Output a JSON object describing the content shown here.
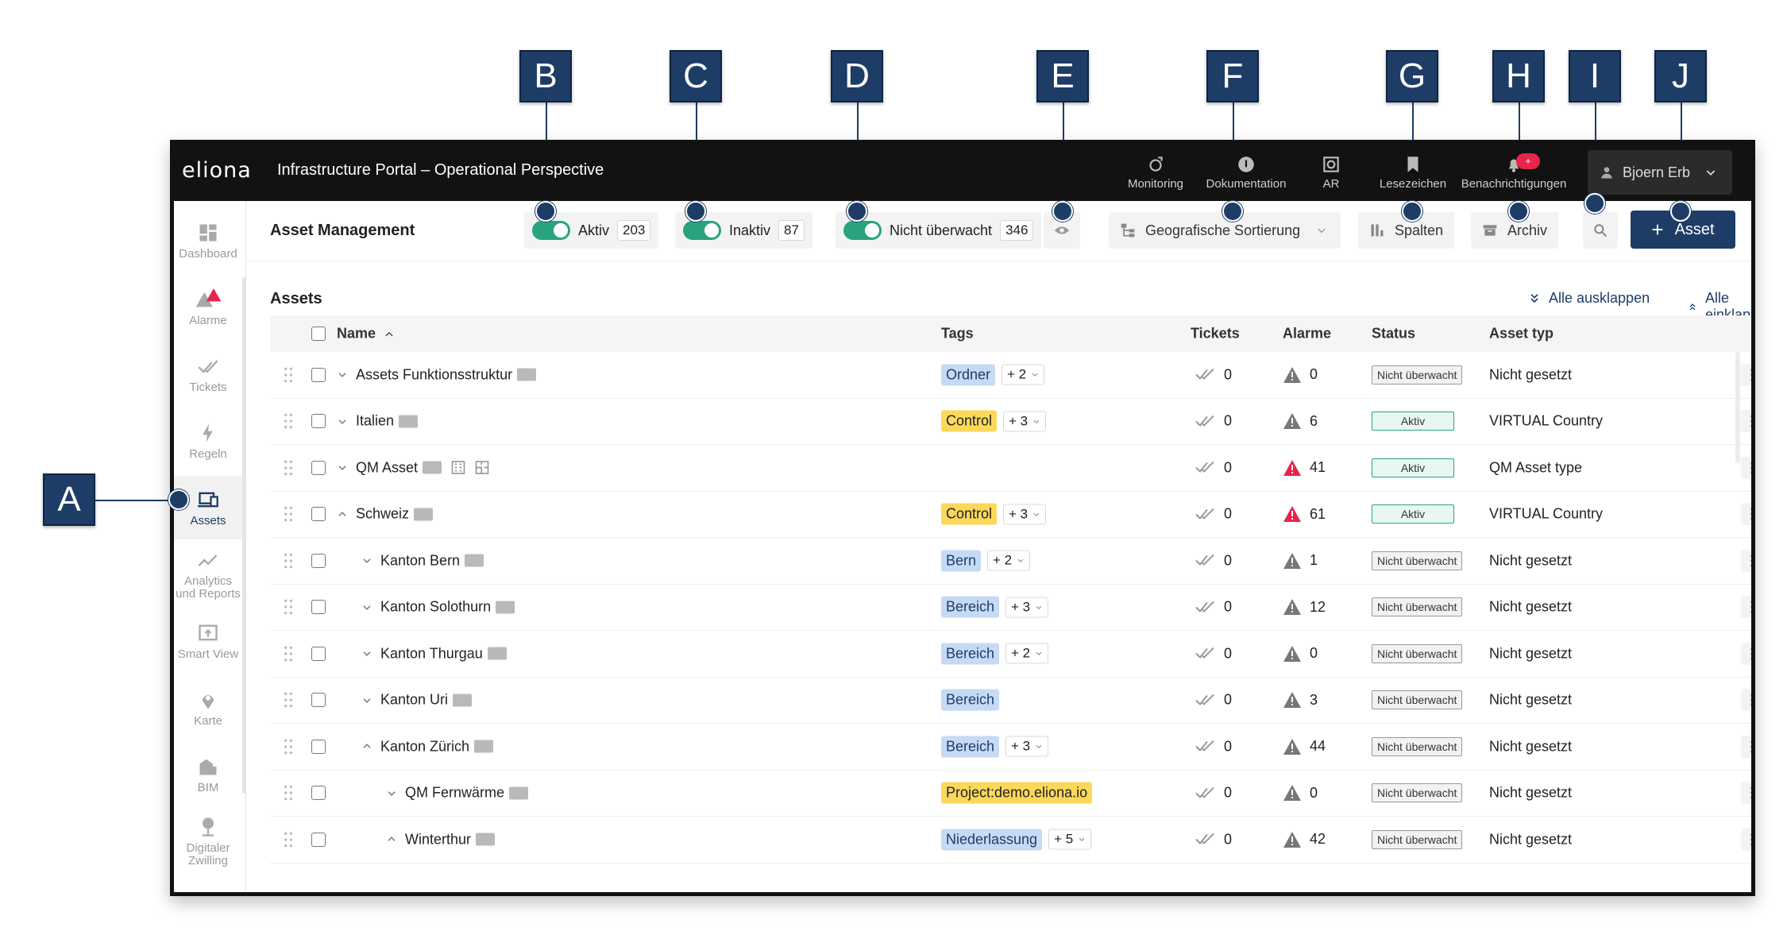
{
  "callouts": [
    "A",
    "B",
    "C",
    "D",
    "E",
    "F",
    "G",
    "H",
    "I",
    "J"
  ],
  "app": {
    "logo": "eliona",
    "portal_title": "Infrastructure Portal – Operational Perspective",
    "topnav": [
      {
        "label": "Monitoring",
        "icon": "monitoring-icon"
      },
      {
        "label": "Dokumentation",
        "icon": "documentation-icon"
      },
      {
        "label": "AR",
        "icon": "ar-icon"
      },
      {
        "label": "Lesezeichen",
        "icon": "bookmark-icon"
      },
      {
        "label": "Benachrichtigungen",
        "icon": "bell-icon",
        "badge": "+"
      }
    ],
    "user": {
      "name": "Bjoern Erb"
    }
  },
  "sidebar": {
    "items": [
      {
        "label": "Dashboard",
        "icon": "dashboard-icon"
      },
      {
        "label": "Alarme",
        "icon": "alarm-icon"
      },
      {
        "label": "Tickets",
        "icon": "tickets-icon"
      },
      {
        "label": "Regeln",
        "icon": "rules-icon"
      },
      {
        "label": "Assets",
        "icon": "assets-icon",
        "active": true
      },
      {
        "label": "Analytics und Reports",
        "icon": "analytics-icon"
      },
      {
        "label": "Smart View",
        "icon": "smart-view-icon"
      },
      {
        "label": "Karte",
        "icon": "map-pin-icon"
      },
      {
        "label": "BIM",
        "icon": "bim-icon"
      },
      {
        "label": "Digitaler Zwilling",
        "icon": "digital-twin-icon"
      }
    ]
  },
  "header": {
    "title": "Asset Management",
    "toggles": [
      {
        "label": "Aktiv",
        "count": "203"
      },
      {
        "label": "Inaktiv",
        "count": "87"
      },
      {
        "label": "Nicht überwacht",
        "count": "346"
      }
    ],
    "geo_sort_label": "Geografische Sortierung",
    "columns_label": "Spalten",
    "archive_label": "Archiv",
    "add_asset_label": "Asset",
    "colors": {
      "accent": "#1d3d66",
      "toggle_on": "#29a37e",
      "alarm_red": "#e8244b"
    }
  },
  "assets": {
    "title": "Assets",
    "expand_all": "Alle ausklappen",
    "collapse_all": "Alle einklappen",
    "columns": {
      "name": "Name",
      "tags": "Tags",
      "tickets": "Tickets",
      "alarms": "Alarme",
      "status": "Status",
      "type": "Asset typ"
    },
    "rows": [
      {
        "name": "Assets Funktionsstruktur",
        "level": 0,
        "exp": "down",
        "tag": "Ordner",
        "tag_color": "blue",
        "more": "+ 2",
        "tickets": "0",
        "alarm_color": "grey",
        "alarms": "0",
        "status": "Nicht überwacht",
        "type": "Nicht gesetzt"
      },
      {
        "name": "Italien",
        "level": 0,
        "exp": "down",
        "tag": "Control",
        "tag_color": "yellow",
        "more": "+ 3",
        "tickets": "0",
        "alarm_color": "grey",
        "alarms": "6",
        "status": "Aktiv",
        "type": "VIRTUAL Country"
      },
      {
        "name": "QM Asset",
        "level": 0,
        "exp": "down",
        "tag": "",
        "tag_color": "",
        "more": "",
        "tickets": "0",
        "alarm_color": "red",
        "alarms": "41",
        "status": "Aktiv",
        "type": "QM Asset type",
        "extra_icons": true
      },
      {
        "name": "Schweiz",
        "level": 0,
        "exp": "up",
        "tag": "Control",
        "tag_color": "yellow",
        "more": "+ 3",
        "tickets": "0",
        "alarm_color": "red",
        "alarms": "61",
        "status": "Aktiv",
        "type": "VIRTUAL Country"
      },
      {
        "name": "Kanton Bern",
        "level": 1,
        "exp": "down",
        "tag": "Bern",
        "tag_color": "blue",
        "more": "+ 2",
        "tickets": "0",
        "alarm_color": "grey",
        "alarms": "1",
        "status": "Nicht überwacht",
        "type": "Nicht gesetzt"
      },
      {
        "name": "Kanton Solothurn",
        "level": 1,
        "exp": "down",
        "tag": "Bereich",
        "tag_color": "blue",
        "more": "+ 3",
        "tickets": "0",
        "alarm_color": "grey",
        "alarms": "12",
        "status": "Nicht überwacht",
        "type": "Nicht gesetzt"
      },
      {
        "name": "Kanton Thurgau",
        "level": 1,
        "exp": "down",
        "tag": "Bereich",
        "tag_color": "blue",
        "more": "+ 2",
        "tickets": "0",
        "alarm_color": "grey",
        "alarms": "0",
        "status": "Nicht überwacht",
        "type": "Nicht gesetzt"
      },
      {
        "name": "Kanton Uri",
        "level": 1,
        "exp": "down",
        "tag": "Bereich",
        "tag_color": "blue",
        "more": "",
        "tickets": "0",
        "alarm_color": "grey",
        "alarms": "3",
        "status": "Nicht überwacht",
        "type": "Nicht gesetzt"
      },
      {
        "name": "Kanton Zürich",
        "level": 1,
        "exp": "up",
        "tag": "Bereich",
        "tag_color": "blue",
        "more": "+ 3",
        "tickets": "0",
        "alarm_color": "grey",
        "alarms": "44",
        "status": "Nicht überwacht",
        "type": "Nicht gesetzt"
      },
      {
        "name": "QM Fernwärme",
        "level": 2,
        "exp": "down",
        "tag": "Project:demo.eliona.io",
        "tag_color": "yellow",
        "more": "",
        "tickets": "0",
        "alarm_color": "grey",
        "alarms": "0",
        "status": "Nicht überwacht",
        "type": "Nicht gesetzt"
      },
      {
        "name": "Winterthur",
        "level": 2,
        "exp": "up",
        "tag": "Niederlassung",
        "tag_color": "blue",
        "more": "+ 5",
        "tickets": "0",
        "alarm_color": "grey",
        "alarms": "42",
        "status": "Nicht überwacht",
        "type": "Nicht gesetzt"
      }
    ]
  }
}
